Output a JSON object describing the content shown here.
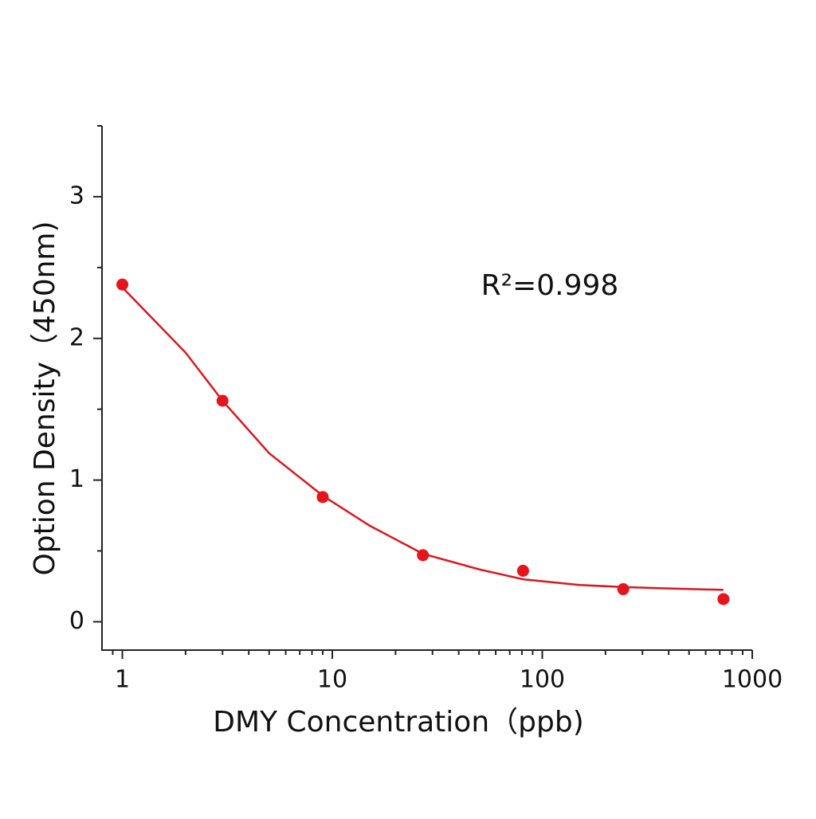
{
  "chart_data": {
    "type": "scatter",
    "xlabel": "DMY Concentration（ppb)",
    "ylabel": "Option Density（450nm)",
    "annotation": "R²=0.998",
    "xscale": "log",
    "xlim": [
      0.8,
      1000
    ],
    "xticks": [
      1,
      10,
      100,
      1000
    ],
    "xticks_minor": [
      0.9,
      2,
      3,
      4,
      5,
      6,
      7,
      8,
      9,
      20,
      30,
      40,
      50,
      60,
      70,
      80,
      90,
      200,
      300,
      400,
      500,
      600,
      700,
      800,
      900
    ],
    "ylim": [
      -0.2,
      3.5
    ],
    "yticks": [
      0,
      1,
      2,
      3
    ],
    "yticks_minor": [
      0.5,
      1.5,
      2.5,
      3.5
    ],
    "series": [
      {
        "x": [
          1,
          3,
          9,
          27,
          81,
          243,
          729
        ],
        "values": [
          2.38,
          1.56,
          0.88,
          0.47,
          0.36,
          0.23,
          0.16
        ],
        "color": "#e8141b",
        "style": "markers"
      },
      {
        "x": [
          1,
          2,
          3,
          5,
          9,
          15,
          27,
          50,
          81,
          150,
          243,
          400,
          729
        ],
        "values": [
          2.36,
          1.9,
          1.56,
          1.19,
          0.89,
          0.68,
          0.48,
          0.37,
          0.3,
          0.26,
          0.245,
          0.235,
          0.225
        ],
        "color": "#d9181e",
        "style": "line"
      }
    ]
  }
}
